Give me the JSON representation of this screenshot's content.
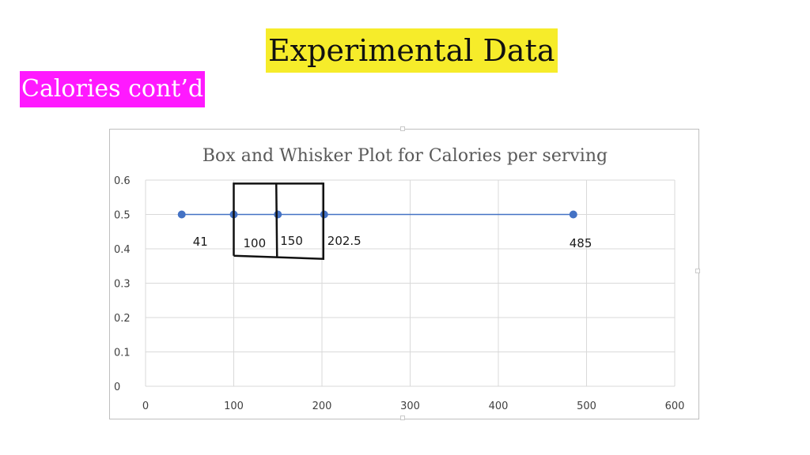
{
  "slide": {
    "title": "Experimental Data",
    "subtitle": "Calories cont’d",
    "title_highlight_color": "#f6ec2a",
    "subtitle_highlight_color": "#ff19ff"
  },
  "chart_data": {
    "type": "scatter",
    "title": "Box and Whisker Plot for Calories per serving",
    "xlabel": "",
    "ylabel": "",
    "xlim": [
      0,
      600
    ],
    "ylim": [
      0,
      0.6
    ],
    "x_ticks": [
      "0",
      "100",
      "200",
      "300",
      "400",
      "500",
      "600"
    ],
    "y_ticks": [
      "0",
      "0.1",
      "0.2",
      "0.3",
      "0.4",
      "0.5",
      "0.6"
    ],
    "grid": true,
    "legend": "none",
    "series": [
      {
        "points": [
          {
            "x": 41,
            "y": 0.5
          },
          {
            "x": 100,
            "y": 0.5
          },
          {
            "x": 150,
            "y": 0.5
          },
          {
            "x": 202.5,
            "y": 0.5
          },
          {
            "x": 485,
            "y": 0.5
          }
        ],
        "color": "#4472c4"
      }
    ],
    "annotations": [
      {
        "text": "41",
        "x": 41
      },
      {
        "text": "100",
        "x": 100
      },
      {
        "text": "150",
        "x": 150
      },
      {
        "text": "202.5",
        "x": 202.5
      },
      {
        "text": "485",
        "x": 485
      }
    ],
    "box": {
      "q1": 100,
      "median": 150,
      "q3": 202.5,
      "y_low": 0.38,
      "y_high": 0.59,
      "color": "#111111"
    }
  }
}
